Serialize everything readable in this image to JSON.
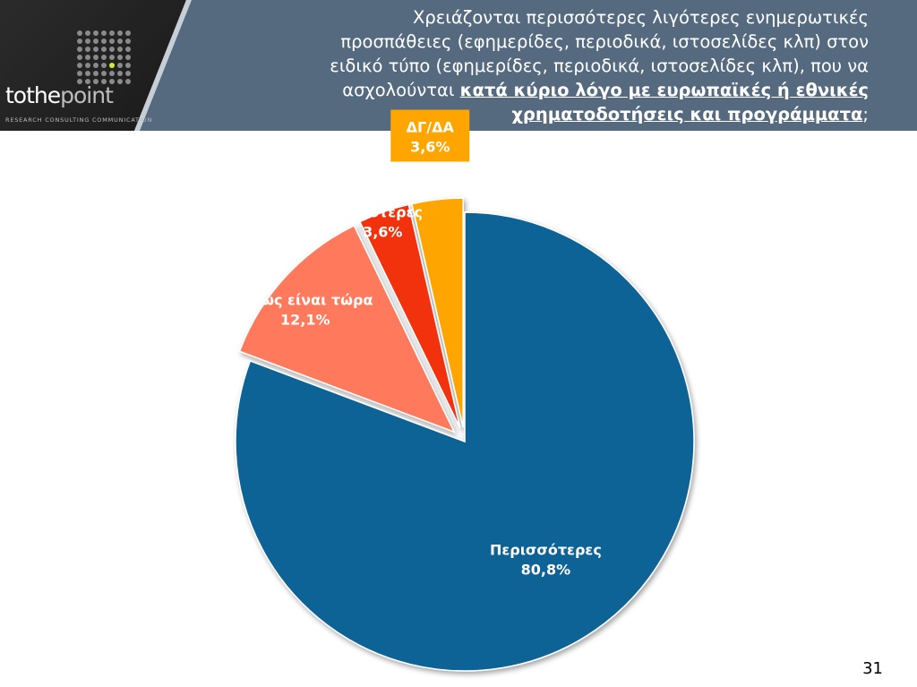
{
  "header": {
    "title_lines": [
      "Χρειάζονται περισσότερες λιγότερες ενημερωτικές",
      "προσπάθειες (εφημερίδες, περιοδικά, ιστοσελίδες κλπ) στον",
      "ειδικό τύπο (εφημερίδες, περιοδικά, ιστοσελίδες κλπ), που να",
      "ασχολούνται "
    ],
    "title_emphasis_1": "κατά κύριο λόγο με ευρωπαϊκές ή εθνικές",
    "title_emphasis_2": "χρηματοδοτήσεις και προγράμματα",
    "title_end": ";"
  },
  "brand": {
    "name_part1": "tothe",
    "name_part2": "point",
    "tagline": "RESEARCH  CONSULTING  COMMUNICATION"
  },
  "colors": {
    "header_band": "#556a7e",
    "more": "#0e6396",
    "as_now": "#ff7a5c",
    "less": "#f2300f",
    "dk_na": "#ffa500"
  },
  "chart_data": {
    "type": "pie",
    "start_angle_deg": 0,
    "direction": "clockwise",
    "slices": [
      {
        "label": "Περισσότερες",
        "value": 80.8,
        "value_label": "80,8%",
        "color": "#0e6396",
        "exploded": false
      },
      {
        "label": "Όπως είναι τώρα",
        "value": 12.1,
        "value_label": "12,1%",
        "color": "#ff7a5c",
        "exploded": true
      },
      {
        "label": "Λιγότερες",
        "value": 3.6,
        "value_label": "3,6%",
        "color": "#f2300f",
        "exploded": true
      },
      {
        "label": "ΔΓ/ΔΑ",
        "value": 3.6,
        "value_label": "3,6%",
        "color": "#ffa500",
        "exploded": true
      }
    ]
  },
  "page_number": "31"
}
